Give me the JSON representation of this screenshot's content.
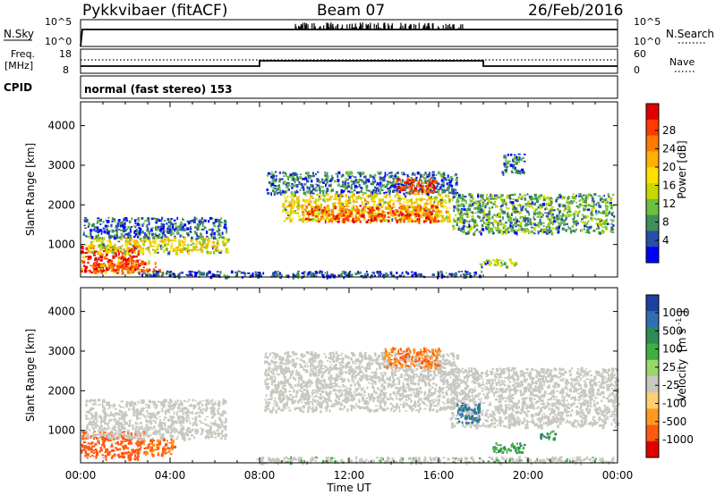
{
  "header": {
    "station": "Pykkvibaer (fitACF)",
    "beam": "Beam 07",
    "date": "26/Feb/2016"
  },
  "status_panels": {
    "nsky_label": "N.Sky",
    "nsearch_label": "N.Search",
    "nsky_tick_top": "10^5",
    "nsky_tick_bottom": "10^0",
    "nsearch_tick_top": "10^5",
    "nsearch_tick_bottom": "10^0",
    "freq_label_1": "Freq.",
    "freq_label_2": "[MHz]",
    "nave_label": "Nave",
    "freq_tick_top": "18",
    "freq_tick_bottom": "8",
    "nave_tick_top": "60",
    "nave_tick_bottom": "0",
    "cpid_label": "CPID",
    "cpid_text": "normal (fast stereo) 153"
  },
  "colorbars": {
    "power_label": "Power [dB]",
    "power_ticks": [
      "28",
      "24",
      "20",
      "16",
      "12",
      "8",
      "4"
    ],
    "power_colors": [
      "#e00000",
      "#ff3a00",
      "#ff7a00",
      "#ffb000",
      "#ffe000",
      "#c8d800",
      "#6cc040",
      "#3f8f5a",
      "#2a4fa8",
      "#0000ff"
    ],
    "velocity_label_1": "Velocity",
    "velocity_label_2": "[m s",
    "velocity_label_3": "-1",
    "velocity_label_4": "]",
    "velocity_ticks": [
      "1000",
      "500",
      "100",
      "25",
      "-25",
      "-100",
      "-500",
      "-1000"
    ],
    "velocity_colors": [
      "#1c3fa0",
      "#2f6fb0",
      "#2e8b57",
      "#3fb03f",
      "#9ad66a",
      "#c8c8c0",
      "#ffd070",
      "#ff9a20",
      "#ff5a10",
      "#e00000"
    ]
  },
  "chart_data": [
    {
      "type": "heatmap",
      "title": "",
      "xlabel": "Time UT",
      "ylabel": "Slant Range [km]",
      "xlim": [
        0,
        24
      ],
      "ylim": [
        180,
        4600
      ],
      "x_ticks": [
        "00:00",
        "04:00",
        "08:00",
        "12:00",
        "16:00",
        "20:00",
        "00:00"
      ],
      "y_ticks": [
        "1000",
        "2000",
        "3000",
        "4000"
      ],
      "quantity": "Power [dB]",
      "blobs": [
        {
          "t0": 0.0,
          "t1": 2.6,
          "r0": 300,
          "r1": 1000,
          "value": 29
        },
        {
          "t0": 0.2,
          "t1": 6.6,
          "r0": 800,
          "r1": 1200,
          "value": 17
        },
        {
          "t0": 0.1,
          "t1": 6.5,
          "r0": 1200,
          "r1": 1700,
          "value": 7
        },
        {
          "t0": 0.5,
          "t1": 3.5,
          "r0": 300,
          "r1": 600,
          "value": 26
        },
        {
          "t0": 8.3,
          "t1": 16.8,
          "r0": 2300,
          "r1": 2850,
          "value": 8
        },
        {
          "t0": 9.0,
          "t1": 16.5,
          "r0": 1600,
          "r1": 2300,
          "value": 18
        },
        {
          "t0": 10.0,
          "t1": 16.0,
          "r0": 1600,
          "r1": 2000,
          "value": 26
        },
        {
          "t0": 14.0,
          "t1": 15.8,
          "r0": 2300,
          "r1": 2700,
          "value": 27
        },
        {
          "t0": 16.6,
          "t1": 23.8,
          "r0": 1300,
          "r1": 2300,
          "value": 11
        },
        {
          "t0": 18.8,
          "t1": 19.8,
          "r0": 2800,
          "r1": 3300,
          "value": 8
        },
        {
          "t0": 17.8,
          "t1": 19.4,
          "r0": 450,
          "r1": 650,
          "value": 14
        },
        {
          "t0": 2.5,
          "t1": 18.0,
          "r0": 200,
          "r1": 350,
          "value": 6
        }
      ]
    },
    {
      "type": "heatmap",
      "title": "",
      "xlabel": "Time UT",
      "ylabel": "Slant Range [km]",
      "xlim": [
        0,
        24
      ],
      "ylim": [
        180,
        4600
      ],
      "x_ticks": [
        "00:00",
        "04:00",
        "08:00",
        "12:00",
        "16:00",
        "20:00",
        "00:00"
      ],
      "y_ticks": [
        "1000",
        "2000",
        "3000",
        "4000"
      ],
      "quantity": "Velocity [m s-1]",
      "blobs": [
        {
          "t0": 0.0,
          "t1": 2.8,
          "r0": 300,
          "r1": 1000,
          "value": -500
        },
        {
          "t0": 0.2,
          "t1": 6.5,
          "r0": 800,
          "r1": 1800,
          "value": 0
        },
        {
          "t0": 2.8,
          "t1": 4.2,
          "r0": 400,
          "r1": 800,
          "value": -300
        },
        {
          "t0": 8.2,
          "t1": 16.8,
          "r0": 1500,
          "r1": 3000,
          "value": 0
        },
        {
          "t0": 13.5,
          "t1": 16.0,
          "r0": 2600,
          "r1": 3100,
          "value": -300
        },
        {
          "t0": 16.5,
          "t1": 24.0,
          "r0": 1100,
          "r1": 2600,
          "value": 0
        },
        {
          "t0": 16.8,
          "t1": 17.8,
          "r0": 1200,
          "r1": 1700,
          "value": 400
        },
        {
          "t0": 18.4,
          "t1": 19.8,
          "r0": 450,
          "r1": 700,
          "value": 60
        },
        {
          "t0": 20.5,
          "t1": 21.2,
          "r0": 800,
          "r1": 1000,
          "value": 80
        },
        {
          "t0": 7.8,
          "t1": 23.8,
          "r0": 200,
          "r1": 350,
          "value": 10
        }
      ]
    }
  ]
}
